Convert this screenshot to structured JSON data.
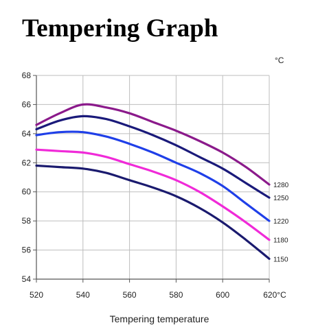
{
  "title": "Tempering Graph",
  "chart_data": {
    "type": "line",
    "xlabel": "Tempering temperature",
    "unit_top": "°C",
    "x_unit_suffix": "°C",
    "xlim": [
      520,
      620
    ],
    "ylim": [
      54,
      68
    ],
    "xticks": [
      520,
      540,
      560,
      580,
      600,
      620
    ],
    "yticks": [
      54,
      56,
      58,
      60,
      62,
      64,
      66,
      68
    ],
    "grid": true,
    "series": [
      {
        "name": "1280",
        "color": "#8b1a8b",
        "x": [
          520,
          530,
          540,
          550,
          560,
          570,
          580,
          590,
          600,
          610,
          620
        ],
        "y": [
          64.6,
          65.4,
          66.0,
          65.8,
          65.4,
          64.8,
          64.2,
          63.5,
          62.7,
          61.7,
          60.5
        ]
      },
      {
        "name": "1250",
        "color": "#1a1a7a",
        "x": [
          520,
          530,
          540,
          550,
          560,
          570,
          580,
          590,
          600,
          610,
          620
        ],
        "y": [
          64.3,
          64.9,
          65.2,
          65.0,
          64.5,
          63.9,
          63.2,
          62.4,
          61.6,
          60.6,
          59.6
        ]
      },
      {
        "name": "1220",
        "color": "#1f3fe8",
        "x": [
          520,
          530,
          540,
          550,
          560,
          570,
          580,
          590,
          600,
          610,
          620
        ],
        "y": [
          63.9,
          64.1,
          64.1,
          63.8,
          63.3,
          62.7,
          62.0,
          61.3,
          60.4,
          59.2,
          58.0
        ]
      },
      {
        "name": "1180",
        "color": "#f02ad8",
        "x": [
          520,
          530,
          540,
          550,
          560,
          570,
          580,
          590,
          600,
          610,
          620
        ],
        "y": [
          62.9,
          62.8,
          62.7,
          62.4,
          61.9,
          61.4,
          60.8,
          60.0,
          59.0,
          57.9,
          56.7
        ]
      },
      {
        "name": "1150",
        "color": "#1a1a6e",
        "x": [
          520,
          530,
          540,
          550,
          560,
          570,
          580,
          590,
          600,
          610,
          620
        ],
        "y": [
          61.8,
          61.7,
          61.6,
          61.3,
          60.8,
          60.3,
          59.7,
          58.9,
          57.9,
          56.7,
          55.4
        ]
      }
    ]
  }
}
